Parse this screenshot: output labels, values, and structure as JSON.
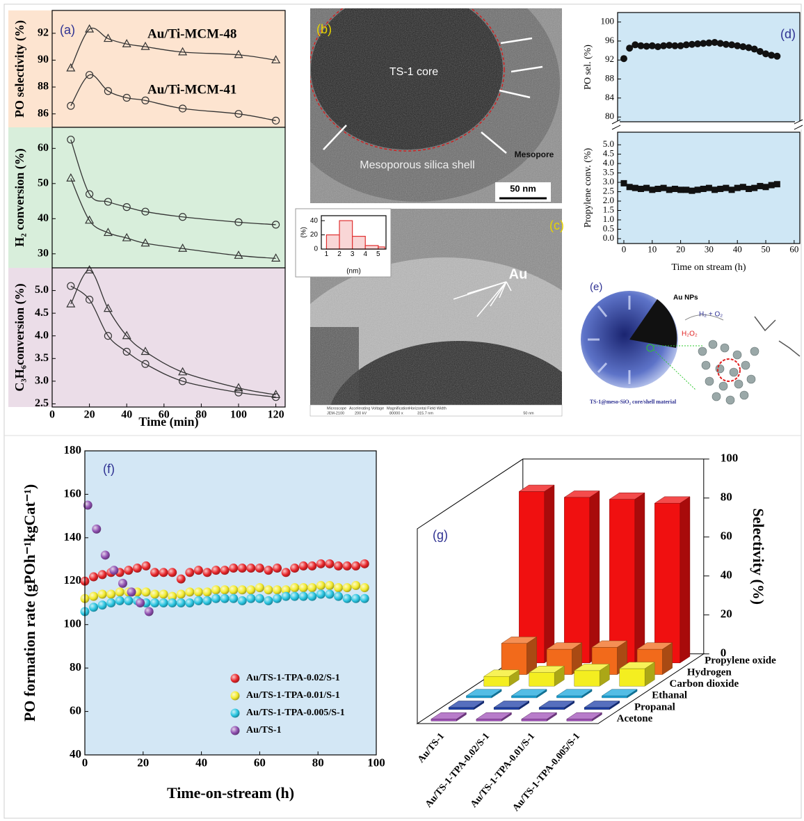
{
  "chart_data": [
    {
      "type": "line",
      "label": "(a)",
      "ylabel": "PO selectivity (%)",
      "x": [
        10,
        20,
        30,
        40,
        50,
        70,
        100,
        120
      ],
      "xlim": [
        0,
        125
      ],
      "ylim": [
        85,
        93.7
      ],
      "yticks": [
        86,
        88,
        90,
        92
      ],
      "background": "#fde4d0",
      "series": [
        {
          "name": "Au/Ti-MCM-48",
          "marker": "triangle",
          "color": "#333333",
          "values": [
            89.4,
            92.3,
            91.6,
            91.2,
            91.0,
            90.6,
            90.4,
            90.0
          ]
        },
        {
          "name": "Au/Ti-MCM-41",
          "marker": "circle",
          "color": "#333333",
          "values": [
            86.6,
            88.9,
            87.7,
            87.2,
            87.0,
            86.4,
            86.0,
            85.5
          ]
        }
      ]
    },
    {
      "type": "line",
      "ylabel": "H₂ conversion (%)",
      "x": [
        10,
        20,
        30,
        40,
        50,
        70,
        100,
        120
      ],
      "xlim": [
        0,
        125
      ],
      "ylim": [
        26,
        66
      ],
      "yticks": [
        30,
        40,
        50,
        60
      ],
      "background": "#d8eedb",
      "series": [
        {
          "marker": "circle",
          "color": "#333333",
          "values": [
            62.5,
            47,
            44.8,
            43.3,
            42,
            40.5,
            39,
            38.3
          ]
        },
        {
          "marker": "triangle",
          "color": "#333333",
          "values": [
            51.5,
            39.5,
            36,
            34.5,
            33,
            31.5,
            29.5,
            28.7
          ]
        }
      ]
    },
    {
      "type": "line",
      "ylabel": "C₃H₆conversion (%)",
      "xlabel": "Time (min)",
      "x": [
        10,
        20,
        30,
        40,
        50,
        70,
        100,
        120
      ],
      "xlim": [
        0,
        125
      ],
      "xticks": [
        0,
        20,
        40,
        60,
        80,
        100,
        120
      ],
      "ylim": [
        2.43,
        5.5
      ],
      "yticks": [
        2.5,
        {
          "value": 3,
          "label": "3.0"
        },
        3.5,
        {
          "value": 4,
          "label": "4.0"
        },
        4.5,
        {
          "value": 5,
          "label": "5.0"
        }
      ],
      "background": "#ebdde8",
      "series": [
        {
          "marker": "triangle",
          "color": "#333333",
          "values": [
            4.7,
            5.45,
            4.6,
            4.0,
            3.65,
            3.2,
            2.85,
            2.7
          ]
        },
        {
          "marker": "circle",
          "color": "#333333",
          "values": [
            5.1,
            4.8,
            4.0,
            3.65,
            3.38,
            3.0,
            2.75,
            2.65
          ]
        }
      ]
    },
    {
      "type": "scatter",
      "label": "(d)",
      "ylabel": "PO sel. (%)",
      "x": [
        0,
        2,
        4,
        6,
        8,
        10,
        12,
        14,
        16,
        18,
        20,
        22,
        24,
        26,
        28,
        30,
        32,
        34,
        36,
        38,
        40,
        42,
        44,
        46,
        48,
        50,
        52,
        54
      ],
      "xlim": [
        -2.2,
        62
      ],
      "ylim": [
        79,
        102
      ],
      "yticks": [
        80,
        84,
        88,
        92,
        96,
        100
      ],
      "background": "#cfe7f5",
      "series": [
        {
          "marker": "circle",
          "color": "#111111",
          "values": [
            92.3,
            94.5,
            95.2,
            95.0,
            94.9,
            95.0,
            94.8,
            95.0,
            95.1,
            95.0,
            95.0,
            95.2,
            95.3,
            95.4,
            95.5,
            95.6,
            95.7,
            95.5,
            95.3,
            95.2,
            95.0,
            94.8,
            94.6,
            94.3,
            93.8,
            93.3,
            93.0,
            92.8
          ]
        }
      ]
    },
    {
      "type": "scatter",
      "ylabel": "Propylene conv. (%)",
      "xlabel": "Time on stream (h)",
      "x": [
        0,
        2,
        4,
        6,
        8,
        10,
        12,
        14,
        16,
        18,
        20,
        22,
        24,
        26,
        28,
        30,
        32,
        34,
        36,
        38,
        40,
        42,
        44,
        46,
        48,
        50,
        52,
        54
      ],
      "xlim": [
        -2.2,
        62
      ],
      "xticks": [
        0,
        10,
        20,
        30,
        40,
        50,
        60
      ],
      "ylim": [
        -0.26,
        5.67
      ],
      "yticks": [
        {
          "value": 0,
          "label": "0.0"
        },
        0.5,
        {
          "value": 1,
          "label": "1.0"
        },
        1.5,
        {
          "value": 2,
          "label": "2.0"
        },
        2.5,
        {
          "value": 3,
          "label": "3.0"
        },
        3.5,
        {
          "value": 4,
          "label": "4.0"
        },
        4.5,
        {
          "value": 5,
          "label": "5.0"
        }
      ],
      "background": "#cfe7f5",
      "series": [
        {
          "marker": "square",
          "color": "#111111",
          "values": [
            2.95,
            2.75,
            2.7,
            2.65,
            2.7,
            2.6,
            2.65,
            2.7,
            2.6,
            2.65,
            2.6,
            2.6,
            2.55,
            2.6,
            2.65,
            2.7,
            2.6,
            2.65,
            2.7,
            2.6,
            2.7,
            2.75,
            2.65,
            2.7,
            2.8,
            2.75,
            2.85,
            2.9
          ]
        }
      ]
    },
    {
      "type": "histogram",
      "ylabel": "(%)",
      "xlabel": "(nm)",
      "bins": [
        1,
        2,
        3,
        4,
        5,
        5.5
      ],
      "values": [
        20,
        40,
        18,
        5,
        3
      ],
      "color": "#e03030",
      "xlim": [
        0.6,
        5.6
      ],
      "xticks": [
        1,
        2,
        3,
        4,
        5
      ],
      "ylim": [
        0,
        47
      ],
      "yticks": [
        0,
        20,
        40
      ],
      "background": "#ffffff"
    },
    {
      "type": "scatter",
      "label": "(f)",
      "ylabel": "PO formation rate (gPOh⁻¹kgCat⁻¹)",
      "xlabel": "Time-on-stream (h)",
      "xlim": [
        0,
        100
      ],
      "xticks": [
        0,
        20,
        40,
        60,
        80,
        100
      ],
      "ylim": [
        40,
        180
      ],
      "yticks": [
        40,
        60,
        80,
        100,
        120,
        140,
        160,
        180
      ],
      "background": "#d3e7f5",
      "legend": "lower center",
      "series": [
        {
          "name": "Au/TS-1-TPA-0.02/S-1",
          "marker": "sphere",
          "color": "#e8262a",
          "x": [
            0,
            3,
            6,
            9,
            12,
            15,
            18,
            21,
            24,
            27,
            30,
            33,
            36,
            39,
            42,
            45,
            48,
            51,
            54,
            57,
            60,
            63,
            66,
            69,
            72,
            75,
            78,
            81,
            84,
            87,
            90,
            93,
            96
          ],
          "values": [
            120,
            122,
            123,
            124,
            124,
            125,
            126,
            127,
            124,
            124,
            124,
            121,
            124,
            125,
            124,
            125,
            125,
            126,
            126,
            126,
            126,
            125,
            126,
            124,
            126,
            127,
            127,
            128,
            128,
            127,
            127,
            127,
            128
          ]
        },
        {
          "name": "Au/TS-1-TPA-0.01/S-1",
          "marker": "sphere",
          "color": "#f2ea2c",
          "x": [
            0,
            3,
            6,
            9,
            12,
            15,
            18,
            21,
            24,
            27,
            30,
            33,
            36,
            39,
            42,
            45,
            48,
            51,
            54,
            57,
            60,
            63,
            66,
            69,
            72,
            75,
            78,
            81,
            84,
            87,
            90,
            93,
            96
          ],
          "values": [
            112,
            113,
            114,
            114,
            115,
            115,
            115,
            115,
            114,
            114,
            113,
            114,
            115,
            115,
            115,
            116,
            116,
            116,
            116,
            116,
            117,
            116,
            116,
            116,
            117,
            117,
            117,
            118,
            118,
            117,
            117,
            118,
            117
          ]
        },
        {
          "name": "Au/TS-1-TPA-0.005/S-1",
          "marker": "sphere",
          "color": "#28c4e0",
          "x": [
            0,
            3,
            6,
            9,
            12,
            15,
            18,
            21,
            24,
            27,
            30,
            33,
            36,
            39,
            42,
            45,
            48,
            51,
            54,
            57,
            60,
            63,
            66,
            69,
            72,
            75,
            78,
            81,
            84,
            87,
            90,
            93,
            96
          ],
          "values": [
            106,
            108,
            109,
            110,
            111,
            111,
            111,
            110,
            110,
            110,
            110,
            110,
            110,
            111,
            111,
            112,
            112,
            112,
            111,
            112,
            112,
            111,
            112,
            113,
            113,
            113,
            113,
            114,
            114,
            113,
            112,
            112,
            112
          ]
        },
        {
          "name": "Au/TS-1",
          "marker": "sphere",
          "color": "#8e4fb0",
          "x": [
            1,
            4,
            7,
            10,
            13,
            16,
            19,
            22
          ],
          "values": [
            155,
            144,
            132,
            125,
            119,
            115,
            110,
            106
          ]
        }
      ]
    },
    {
      "type": "bar3d",
      "label": "(g)",
      "ylabel": "Selectivity (%)",
      "categories": [
        "Au/TS-1",
        "Au/TS-1-TPA-0.02/S-1",
        "Au/TS-1-TPA-0.01/S-1",
        "Au/TS-1-TPA-0.005/S-1"
      ],
      "ylim": [
        0,
        100
      ],
      "yticks": [
        0,
        20,
        40,
        60,
        80,
        100
      ],
      "series": [
        {
          "name": "Propylene oxide",
          "color": "#f01010",
          "values": [
            88,
            85,
            84,
            82
          ]
        },
        {
          "name": "Hydrogen",
          "color": "#f26a1b",
          "values": [
            16,
            13,
            14,
            13
          ]
        },
        {
          "name": "Carbon dioxide",
          "color": "#f4ee20",
          "values": [
            5,
            7,
            8,
            9
          ]
        },
        {
          "name": "Ethanal",
          "color": "#1aa7dc",
          "values": [
            1,
            1,
            1,
            1
          ]
        },
        {
          "name": "Propanal",
          "color": "#1d3fa8",
          "values": [
            1,
            1,
            1,
            1
          ]
        },
        {
          "name": "Acetone",
          "color": "#a050b8",
          "values": [
            1,
            1,
            1,
            1
          ]
        }
      ]
    }
  ],
  "images": [
    {
      "label": "(b)",
      "core": "TS-1 core",
      "pore": "Mesopore",
      "shell": "Mesoporous silica shell",
      "scale_bar": "50 nm"
    },
    {
      "label": "(c)",
      "particle": "Au",
      "info_headers": [
        "Microscope",
        "Accelerating Voltage",
        "Magnification",
        "Horizontal Field Width"
      ],
      "info_values": [
        "JEM-2100",
        "200 kV",
        "80000 x",
        "315.7 nm"
      ],
      "scale_bar": "50 nm"
    },
    {
      "label": "(e)",
      "particles": "Au NPs",
      "reactants": "H₂ + O₂",
      "product": "H₂O₂",
      "caption": "TS-1@meso-SiO₂ core/shell material"
    }
  ]
}
